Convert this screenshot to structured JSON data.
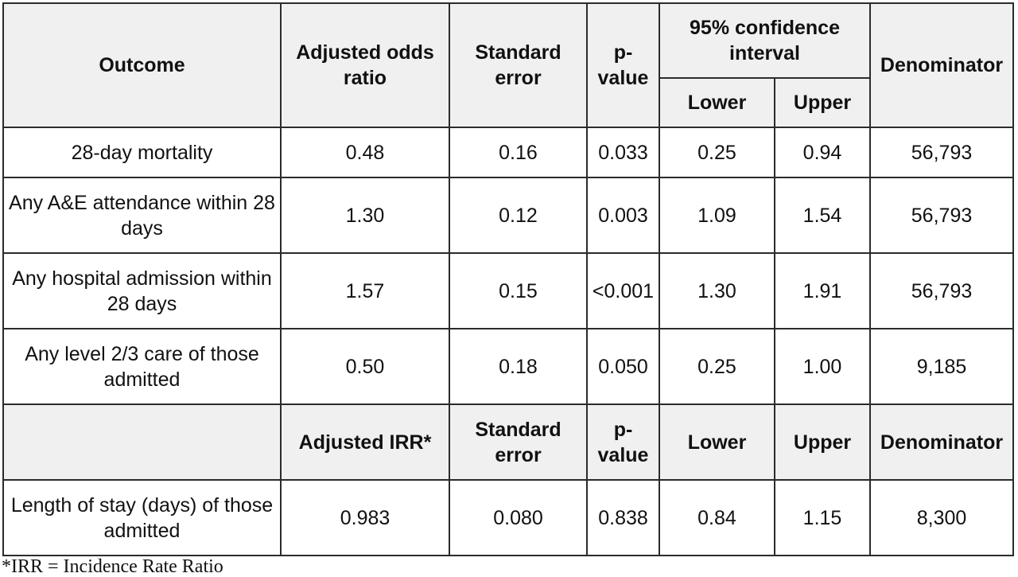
{
  "header": {
    "outcome": "Outcome",
    "adjusted_odds_ratio": "Adjusted odds ratio",
    "standard_error": "Standard error",
    "p_value": "p-value",
    "confidence_interval": "95% confidence interval",
    "lower": "Lower",
    "upper": "Upper",
    "denominator": "Denominator"
  },
  "rows": [
    {
      "outcome": "28-day mortality",
      "estimate": "0.48",
      "se": "0.16",
      "p": "0.033",
      "lower": "0.25",
      "upper": "0.94",
      "denominator": "56,793"
    },
    {
      "outcome": "Any A&E attendance within 28 days",
      "estimate": "1.30",
      "se": "0.12",
      "p": "0.003",
      "lower": "1.09",
      "upper": "1.54",
      "denominator": "56,793"
    },
    {
      "outcome": "Any hospital admission within 28 days",
      "estimate": "1.57",
      "se": "0.15",
      "p": "<0.001",
      "lower": "1.30",
      "upper": "1.91",
      "denominator": "56,793"
    },
    {
      "outcome": "Any level 2/3 care of those admitted",
      "estimate": "0.50",
      "se": "0.18",
      "p": "0.050",
      "lower": "0.25",
      "upper": "1.00",
      "denominator": "9,185"
    }
  ],
  "header2": {
    "outcome": "",
    "adjusted_irr": "Adjusted IRR*",
    "standard_error": "Standard error",
    "p_value": "p-value",
    "lower": "Lower",
    "upper": "Upper",
    "denominator": "Denominator"
  },
  "irr_row": {
    "outcome": "Length of stay (days) of those admitted",
    "estimate": "0.983",
    "se": "0.080",
    "p": "0.838",
    "lower": "0.84",
    "upper": "1.15",
    "denominator": "8,300"
  },
  "footnote": "*IRR = Incidence Rate Ratio"
}
